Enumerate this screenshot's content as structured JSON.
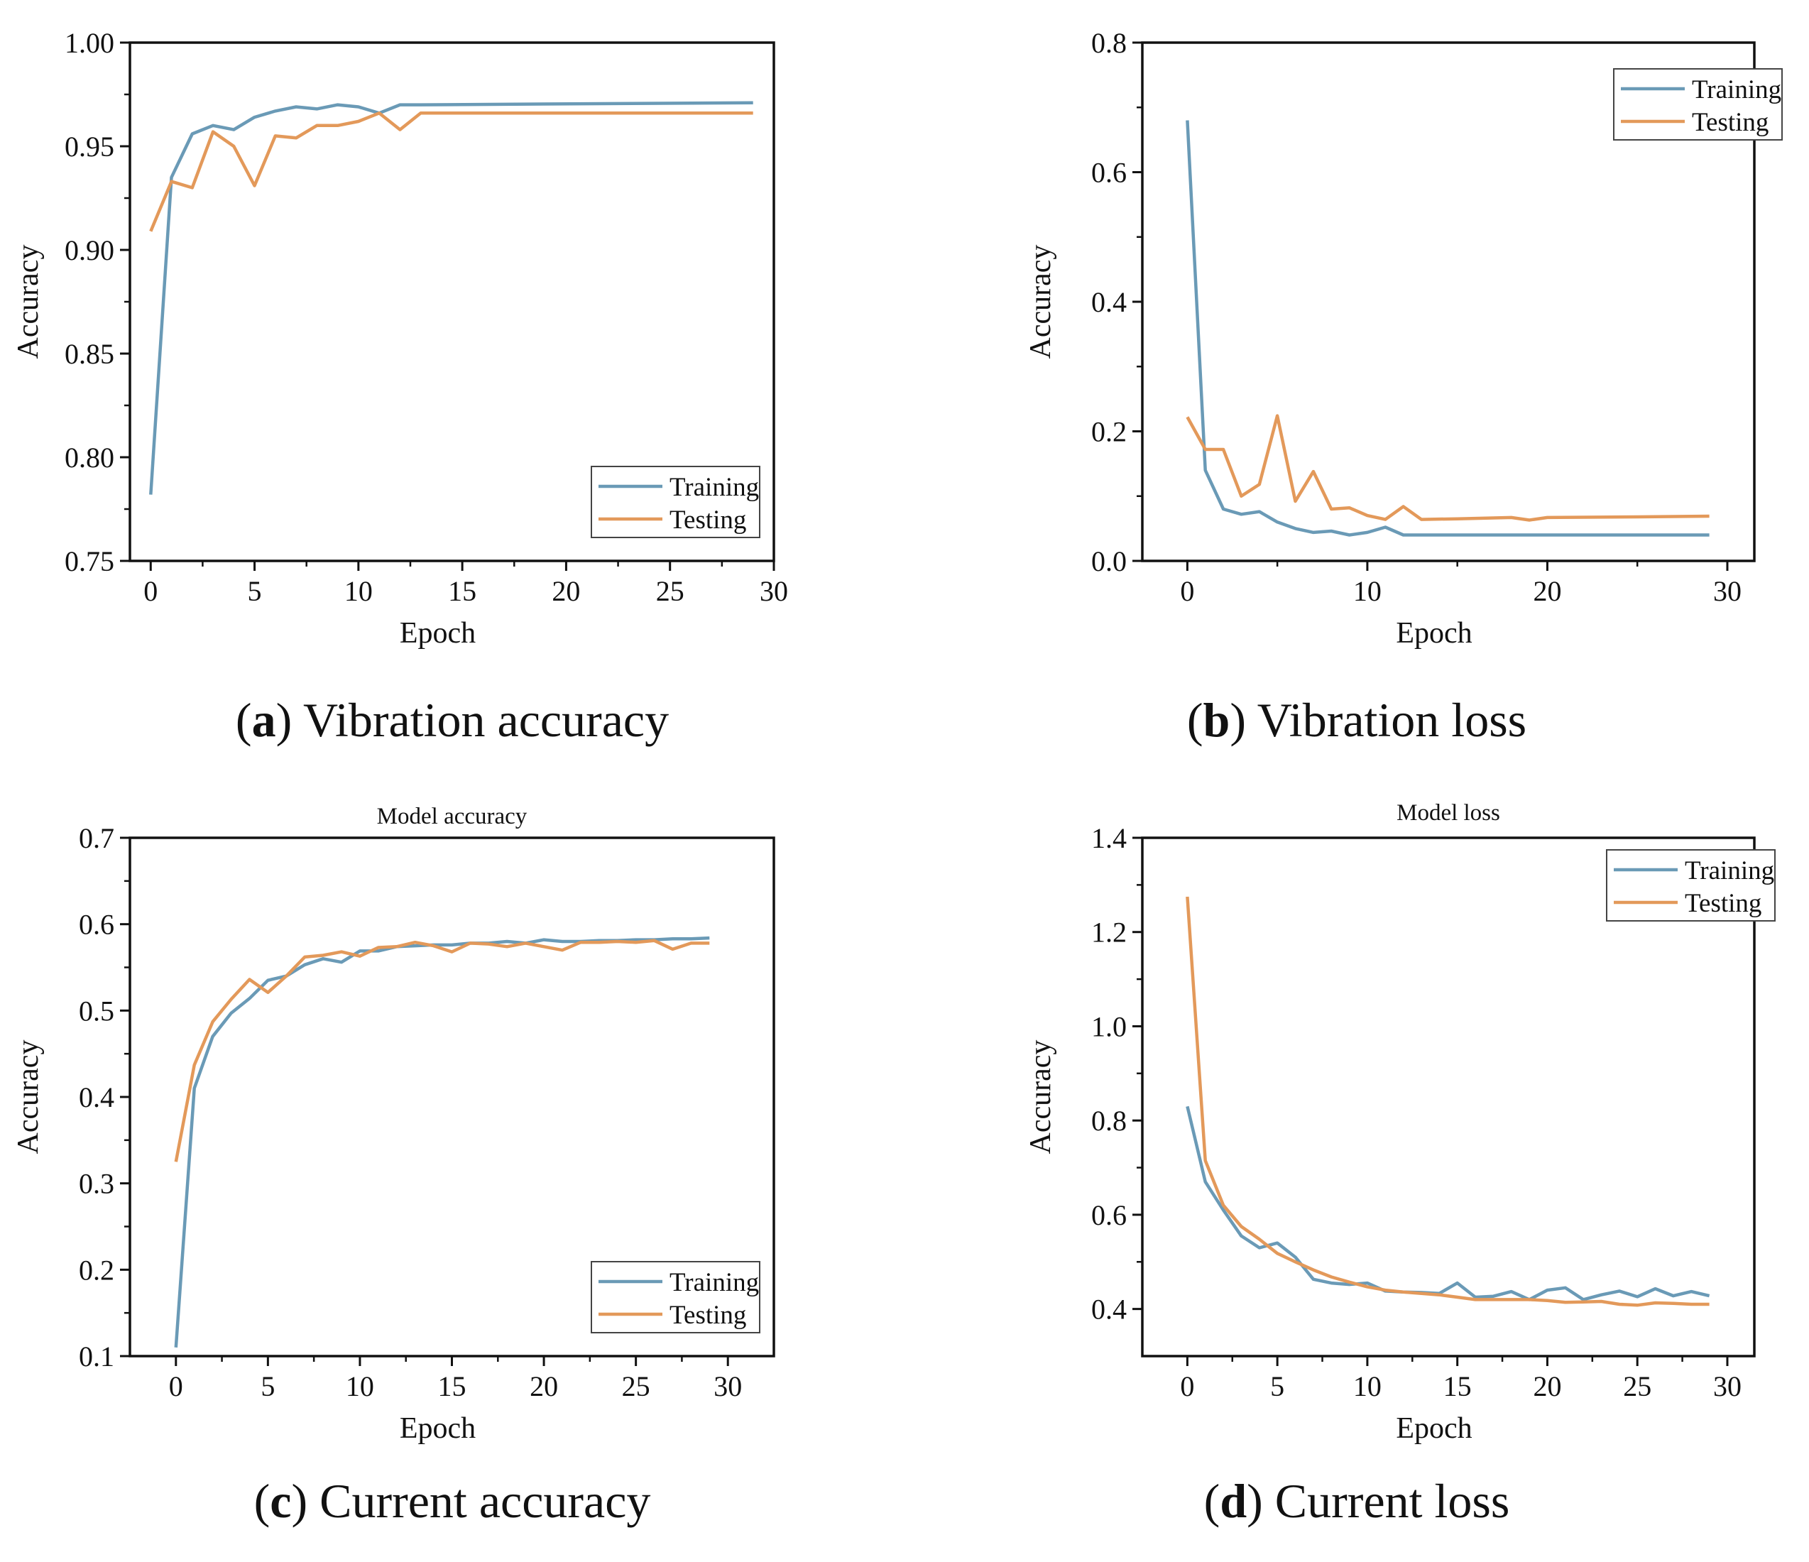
{
  "colors": {
    "training": "#6A9AB6",
    "testing": "#E3995A",
    "axis": "#111111"
  },
  "chart_data": [
    {
      "id": "a",
      "type": "line",
      "caption_letter": "a",
      "caption_text": " Vibration accuracy",
      "title": "",
      "xlabel": "Epoch",
      "ylabel": "Accuracy",
      "xlim": [
        -1,
        30
      ],
      "ylim": [
        0.75,
        1.0
      ],
      "xticks": [
        0,
        5,
        10,
        15,
        20,
        25,
        30
      ],
      "yticks": [
        0.75,
        0.8,
        0.85,
        0.9,
        0.95,
        1.0
      ],
      "ytick_labels": [
        "0.75",
        "0.80",
        "0.85",
        "0.90",
        "0.95",
        "1.00"
      ],
      "legend_position": "bottom-right",
      "series": [
        {
          "name": "Training",
          "x": [
            0,
            1,
            2,
            3,
            4,
            5,
            6,
            7,
            8,
            9,
            10,
            11,
            12,
            13,
            29
          ],
          "y": [
            0.782,
            0.935,
            0.956,
            0.96,
            0.958,
            0.964,
            0.967,
            0.969,
            0.968,
            0.97,
            0.969,
            0.966,
            0.97,
            0.97,
            0.971
          ]
        },
        {
          "name": "Testing",
          "x": [
            0,
            1,
            2,
            3,
            4,
            5,
            6,
            7,
            8,
            9,
            10,
            11,
            12,
            13,
            29
          ],
          "y": [
            0.909,
            0.933,
            0.93,
            0.957,
            0.95,
            0.931,
            0.955,
            0.954,
            0.96,
            0.96,
            0.962,
            0.966,
            0.958,
            0.966,
            0.966
          ]
        }
      ]
    },
    {
      "id": "b",
      "type": "line",
      "caption_letter": "b",
      "caption_text": " Vibration loss",
      "title": "",
      "xlabel": "Epoch",
      "ylabel": "Accuracy",
      "xlim": [
        -2.5,
        31.5
      ],
      "ylim": [
        0.0,
        0.8
      ],
      "xticks": [
        0,
        10,
        20,
        30
      ],
      "yticks": [
        0.0,
        0.2,
        0.4,
        0.6,
        0.8
      ],
      "ytick_labels": [
        "0.0",
        "0.2",
        "0.4",
        "0.6",
        "0.8"
      ],
      "legend_position": "top-right",
      "series": [
        {
          "name": "Training",
          "x": [
            0,
            1,
            2,
            3,
            4,
            5,
            6,
            7,
            8,
            9,
            10,
            11,
            12,
            13,
            15,
            20,
            25,
            29
          ],
          "y": [
            0.68,
            0.14,
            0.08,
            0.072,
            0.076,
            0.06,
            0.05,
            0.044,
            0.046,
            0.04,
            0.044,
            0.052,
            0.04,
            0.04,
            0.04,
            0.04,
            0.04,
            0.04
          ]
        },
        {
          "name": "Testing",
          "x": [
            0,
            1,
            2,
            3,
            4,
            5,
            6,
            7,
            8,
            9,
            10,
            11,
            12,
            13,
            15,
            18,
            19,
            20,
            25,
            29
          ],
          "y": [
            0.222,
            0.172,
            0.172,
            0.1,
            0.118,
            0.224,
            0.092,
            0.138,
            0.08,
            0.082,
            0.07,
            0.064,
            0.084,
            0.064,
            0.065,
            0.067,
            0.063,
            0.067,
            0.068,
            0.069
          ]
        }
      ]
    },
    {
      "id": "c",
      "type": "line",
      "caption_letter": "c",
      "caption_text": " Current accuracy",
      "title": "Model accuracy",
      "xlabel": "Epoch",
      "ylabel": "Accuracy",
      "xlim": [
        -2.5,
        32.5
      ],
      "ylim": [
        0.1,
        0.7
      ],
      "xticks": [
        0,
        5,
        10,
        15,
        20,
        25,
        30
      ],
      "yticks": [
        0.1,
        0.2,
        0.3,
        0.4,
        0.5,
        0.6,
        0.7
      ],
      "ytick_labels": [
        "0.1",
        "0.2",
        "0.3",
        "0.4",
        "0.5",
        "0.6",
        "0.7"
      ],
      "legend_position": "bottom-right",
      "series": [
        {
          "name": "Training",
          "x": [
            0,
            1,
            2,
            3,
            4,
            5,
            6,
            7,
            8,
            9,
            10,
            11,
            12,
            13,
            14,
            15,
            16,
            17,
            18,
            19,
            20,
            21,
            22,
            23,
            24,
            25,
            26,
            27,
            28,
            29
          ],
          "y": [
            0.11,
            0.41,
            0.47,
            0.497,
            0.514,
            0.535,
            0.54,
            0.553,
            0.56,
            0.556,
            0.569,
            0.569,
            0.574,
            0.575,
            0.576,
            0.576,
            0.578,
            0.578,
            0.58,
            0.578,
            0.582,
            0.58,
            0.58,
            0.581,
            0.581,
            0.582,
            0.582,
            0.583,
            0.583,
            0.584
          ]
        },
        {
          "name": "Testing",
          "x": [
            0,
            1,
            2,
            3,
            4,
            5,
            6,
            7,
            8,
            9,
            10,
            11,
            12,
            13,
            14,
            15,
            16,
            17,
            18,
            19,
            20,
            21,
            22,
            23,
            24,
            25,
            26,
            27,
            28,
            29
          ],
          "y": [
            0.325,
            0.437,
            0.487,
            0.513,
            0.536,
            0.521,
            0.54,
            0.562,
            0.564,
            0.568,
            0.563,
            0.573,
            0.574,
            0.579,
            0.575,
            0.568,
            0.578,
            0.577,
            0.574,
            0.578,
            0.574,
            0.57,
            0.579,
            0.579,
            0.58,
            0.579,
            0.581,
            0.571,
            0.578,
            0.578
          ]
        }
      ]
    },
    {
      "id": "d",
      "type": "line",
      "caption_letter": "d",
      "caption_text": " Current loss",
      "title": "Model loss",
      "xlabel": "Epoch",
      "ylabel": "Accuracy",
      "xlim": [
        -2.5,
        31.5
      ],
      "ylim": [
        0.3,
        1.4
      ],
      "xticks": [
        0,
        5,
        10,
        15,
        20,
        25,
        30
      ],
      "yticks": [
        0.4,
        0.6,
        0.8,
        1.0,
        1.2,
        1.4
      ],
      "ytick_labels": [
        "0.4",
        "0.6",
        "0.8",
        "1.0",
        "1.2",
        "1.4"
      ],
      "legend_position": "top-right",
      "series": [
        {
          "name": "Training",
          "x": [
            0,
            1,
            2,
            3,
            4,
            5,
            6,
            7,
            8,
            9,
            10,
            11,
            12,
            13,
            14,
            15,
            16,
            17,
            18,
            19,
            20,
            21,
            22,
            23,
            24,
            25,
            26,
            27,
            28,
            29
          ],
          "y": [
            0.83,
            0.67,
            0.61,
            0.555,
            0.53,
            0.54,
            0.51,
            0.463,
            0.455,
            0.452,
            0.455,
            0.438,
            0.436,
            0.435,
            0.433,
            0.455,
            0.425,
            0.427,
            0.437,
            0.42,
            0.44,
            0.445,
            0.42,
            0.43,
            0.438,
            0.426,
            0.443,
            0.428,
            0.437,
            0.428
          ]
        },
        {
          "name": "Testing",
          "x": [
            0,
            1,
            2,
            3,
            4,
            5,
            6,
            7,
            8,
            9,
            10,
            11,
            12,
            13,
            14,
            15,
            16,
            17,
            18,
            19,
            20,
            21,
            22,
            23,
            24,
            25,
            26,
            27,
            28,
            29
          ],
          "y": [
            1.275,
            0.715,
            0.62,
            0.575,
            0.548,
            0.518,
            0.5,
            0.483,
            0.468,
            0.457,
            0.447,
            0.44,
            0.436,
            0.433,
            0.43,
            0.425,
            0.42,
            0.42,
            0.42,
            0.42,
            0.418,
            0.414,
            0.415,
            0.416,
            0.41,
            0.408,
            0.413,
            0.412,
            0.41,
            0.41
          ]
        }
      ]
    }
  ]
}
